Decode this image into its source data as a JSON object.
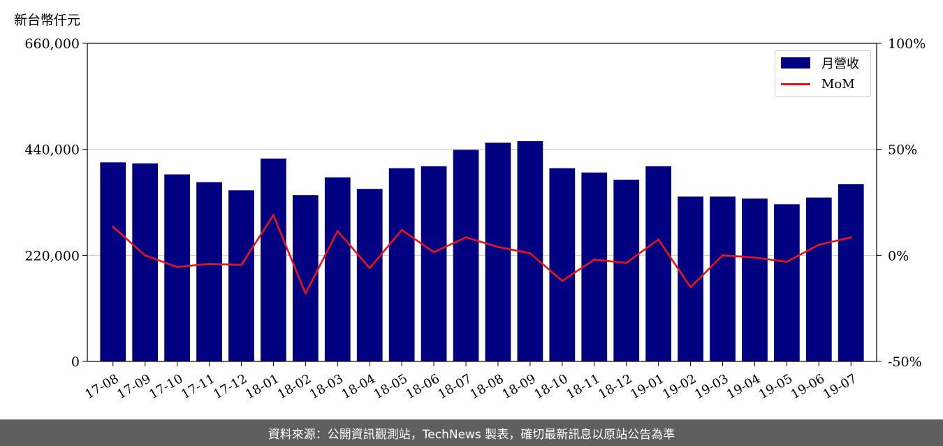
{
  "chart_data": {
    "type": "bar+line",
    "y_unit_label": "新台幣仟元",
    "categories": [
      "17-08",
      "17-09",
      "17-10",
      "17-11",
      "17-12",
      "18-01",
      "18-02",
      "18-03",
      "18-04",
      "18-05",
      "18-06",
      "18-07",
      "18-08",
      "18-09",
      "18-10",
      "18-11",
      "18-12",
      "19-01",
      "19-02",
      "19-03",
      "19-04",
      "19-05",
      "19-06",
      "19-07"
    ],
    "series": [
      {
        "name": "月營收",
        "kind": "bar",
        "axis": "left",
        "color": "#000080",
        "values": [
          413000,
          411000,
          388000,
          372000,
          355000,
          421000,
          345000,
          382000,
          358000,
          401000,
          405000,
          439000,
          454000,
          457000,
          401000,
          392000,
          377000,
          405000,
          342000,
          342000,
          338000,
          326000,
          340000,
          368000
        ]
      },
      {
        "name": "MoM",
        "kind": "line",
        "axis": "right",
        "color": "#e8141b",
        "values": [
          13.5,
          0.0,
          -5.5,
          -4.0,
          -4.5,
          19.0,
          -18.0,
          11.5,
          -6.0,
          12.0,
          1.5,
          8.5,
          4.0,
          1.0,
          -12.0,
          -2.0,
          -3.5,
          7.5,
          -15.0,
          0.0,
          -1.0,
          -3.0,
          5.0,
          8.5
        ]
      }
    ],
    "left_axis": {
      "ylim": [
        0,
        660000
      ],
      "ticks": [
        "0",
        "220,000",
        "440,000",
        "660,000"
      ],
      "tick_values": [
        0,
        220000,
        440000,
        660000
      ]
    },
    "right_axis": {
      "ylim": [
        -50,
        100
      ],
      "ticks": [
        "-50%",
        "0%",
        "50%",
        "100%"
      ],
      "tick_values": [
        -50,
        0,
        50,
        100
      ]
    },
    "grid": "horizontal",
    "legend_position": "top-right"
  },
  "footer_text": "資料來源：公開資訊觀測站，TechNews 製表，確切最新訊息以原站公告為準"
}
